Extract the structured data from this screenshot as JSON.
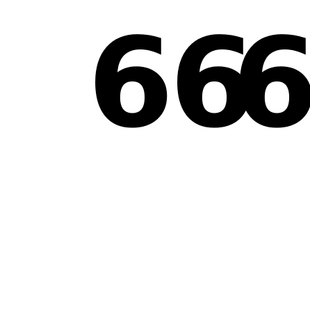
{
  "digits": [
    "6",
    "6",
    "6"
  ],
  "colors": {
    "background": "#ffffff",
    "text": "#000000"
  }
}
